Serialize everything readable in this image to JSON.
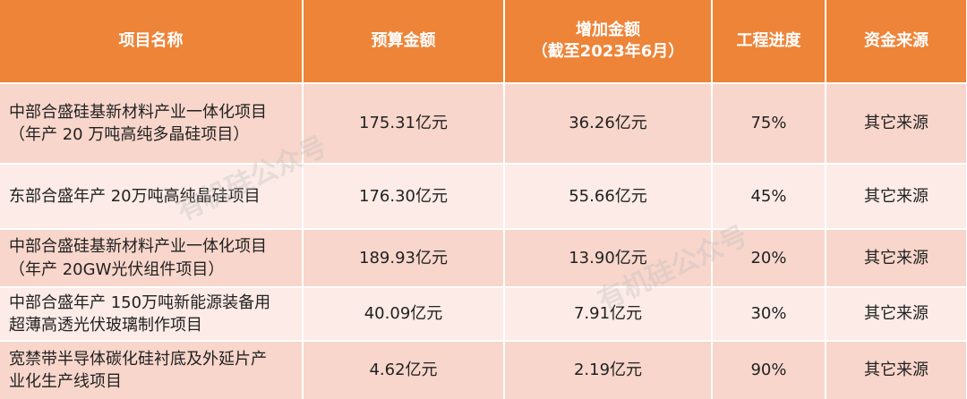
{
  "table": {
    "header": [
      "项目名称",
      "预算金额",
      "增加金额\n（截至2023年6月）",
      "工程进度",
      "资金来源"
    ],
    "rows": [
      [
        "中部合盛硅基新材料产业一体化项目（年产 20 万吨高纯多晶硅项目）",
        "175.31亿元",
        "36.26亿元",
        "75%",
        "其它来源"
      ],
      [
        "东部合盛年产 20万吨高纯晶硅项目",
        "176.30亿元",
        "55.66亿元",
        "45%",
        "其它来源"
      ],
      [
        "中部合盛硅基新材料产业一体化项目（年产 20GW光伏组件项目）",
        "189.93亿元",
        "13.90亿元",
        "20%",
        "其它来源"
      ],
      [
        "中部合盛年产 150万吨新能源装备用超薄高透光伏玻璃制作项目",
        "40.09亿元",
        "7.91亿元",
        "30%",
        "其它来源"
      ],
      [
        "宽禁带半导体碳化硅衬底及外延片产业化生产线项目",
        "4.62亿元",
        "2.19亿元",
        "90%",
        "其它来源"
      ]
    ]
  },
  "watermarks": [
    "有机硅公众号",
    "有机硅公众号"
  ]
}
